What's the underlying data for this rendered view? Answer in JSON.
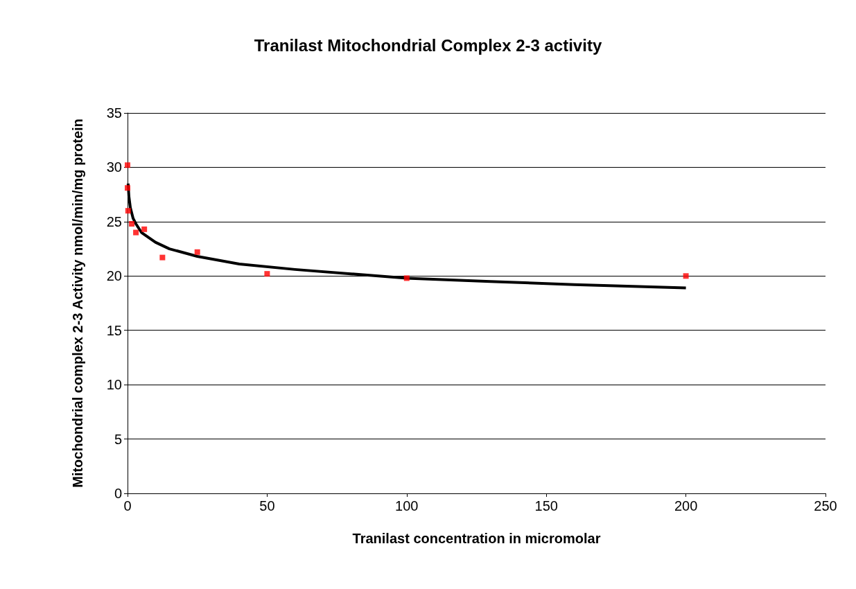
{
  "chart_data": {
    "type": "scatter",
    "title": "Tranilast Mitochondrial Complex 2-3 activity",
    "xlabel": "Tranilast concentration in micromolar",
    "ylabel": "Mitochondrial complex 2-3 Activity nmol/min/mg protein",
    "xlim": [
      0,
      250
    ],
    "xticks": [
      0,
      50,
      100,
      150,
      200,
      250
    ],
    "ylim": [
      0,
      35
    ],
    "yticks": [
      0,
      5,
      10,
      15,
      20,
      25,
      30,
      35
    ],
    "grid": "y",
    "marker": "square",
    "series": [
      {
        "color": "#ff0000",
        "x": [
          0,
          0,
          0.2,
          1.5,
          3,
          6,
          12.5,
          25,
          50,
          100,
          200
        ],
        "values": [
          30.2,
          28.1,
          26,
          24.8,
          24,
          24.3,
          21.7,
          22.2,
          20.2,
          19.8,
          20
        ]
      },
      {
        "type": "line",
        "color": "#000000",
        "marker": "none",
        "x": [
          0.2,
          0.5,
          1,
          2,
          3,
          5,
          10,
          15,
          25,
          40,
          60,
          80,
          100,
          130,
          160,
          200
        ],
        "values": [
          28.5,
          27.3,
          26.3,
          25.3,
          24.8,
          24,
          23.1,
          22.5,
          21.8,
          21.1,
          20.6,
          20.2,
          19.8,
          19.5,
          19.2,
          18.9
        ]
      }
    ]
  }
}
